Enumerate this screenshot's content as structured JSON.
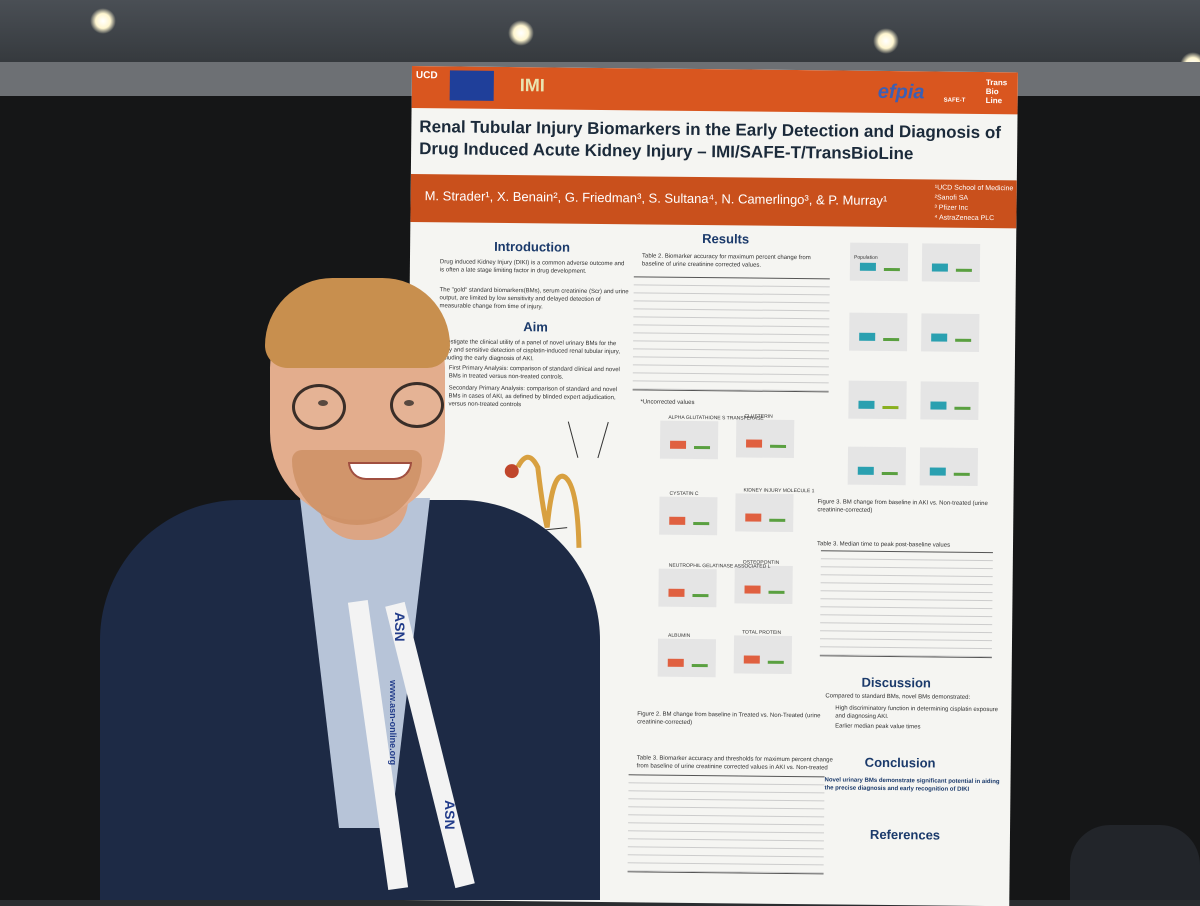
{
  "poster": {
    "logos": {
      "left": "UCD",
      "imi": "IMI",
      "efpia": "efpia",
      "safet": "SAFE-T",
      "transbioline": "Trans Bio Line"
    },
    "title": "Renal Tubular Injury Biomarkers in the Early Detection and Diagnosis of Drug Induced Acute Kidney Injury – IMI/SAFE-T/TransBioLine",
    "authors": "M. Strader¹, X. Benain², G. Friedman³, S. Sultana⁴, N. Camerlingo³, & P. Murray¹",
    "affiliations": [
      "¹UCD School of Medicine",
      "²Sanofi SA",
      "³ Pfizer Inc",
      "⁴ AstraZeneca PLC"
    ],
    "sections": {
      "introduction": "Introduction",
      "aim": "Aim",
      "results": "Results",
      "discussion": "Discussion",
      "conclusion": "Conclusion",
      "references": "References"
    },
    "intro_text": "Drug induced Kidney Injury (DIKI) is a common adverse outcome and is often a late stage limiting factor in drug development.",
    "intro_text2": "The \"gold\" standard biomarkers(BMs), serum creatinine (Scr) and urine output, are limited by low sensitivity and delayed detection of measurable change from time of injury.",
    "aim_text": "Investigate the clinical utility of a panel of novel urinary BMs for the early and sensitive detection of cisplatin-induced renal tubular injury, including the early diagnosis of AKI.",
    "aim_primary": "First Primary Analysis: comparison of standard clinical and novel BMs in treated versus non-treated controls.",
    "aim_secondary": "Secondary Primary Analysis: comparison of standard and novel BMs in cases of AKI, as defined by blinded expert adjudication, versus non-treated controls",
    "table2_caption": "Table 2. Biomarker accuracy for maximum percent change from baseline of urine creatinine corrected values.",
    "table2_biomarkers": [
      "BUN",
      "uOPN",
      "uALB",
      "uKIM1",
      "uTPROT",
      "ua-GST",
      "uCYSC",
      "uCLU",
      "uNGAL",
      "SCYSC",
      "SCr",
      "eGFR"
    ],
    "uncorrected": "*Uncorrected values",
    "figure2_caption": "Figure 2. BM change from baseline in Treated vs. Non-Treated (urine creatinine-corrected)",
    "figure3_caption": "Figure 3. BM change from baseline in AKI vs. Non-treated (urine creatinine-corrected)",
    "table3_caption": "Table 3. Median time to peak post-baseline values",
    "table3b_caption": "Table 3. Biomarker accuracy and thresholds for maximum percent change from baseline of urine creatinine corrected values in AKI vs. Non-treated",
    "discussion_text": "Compared to standard BMs, novel BMs demonstrated:",
    "discussion_points": [
      "High discriminatory function in determining cisplatin exposure and diagnosing AKI.",
      "Earlier median peak value times"
    ],
    "conclusion_text": "Novel urinary BMs demonstrate significant potential in aiding the precise diagnosis and early recognition of DIKI",
    "plot_labels": [
      "ALPHA GLUTATHIONE S TRANSFERASE",
      "CLUSTERIN",
      "CYSTATIN C",
      "KIDNEY INJURY MOLECULE 1",
      "NEUTROPHIL GELATINASE ASSOCIATED L",
      "OSTEOPONTIN",
      "ALBUMIN",
      "TOTAL PROTEIN"
    ],
    "population": "Population"
  },
  "lanyard": {
    "brand": "ASN",
    "url": "www.asn-online.org"
  },
  "colors": {
    "poster_orange": "#d9561f",
    "title_navy": "#1b2a3a",
    "section_blue": "#1b3a6b",
    "jacket": "#1d2a45",
    "hair": "#c88f4e"
  }
}
